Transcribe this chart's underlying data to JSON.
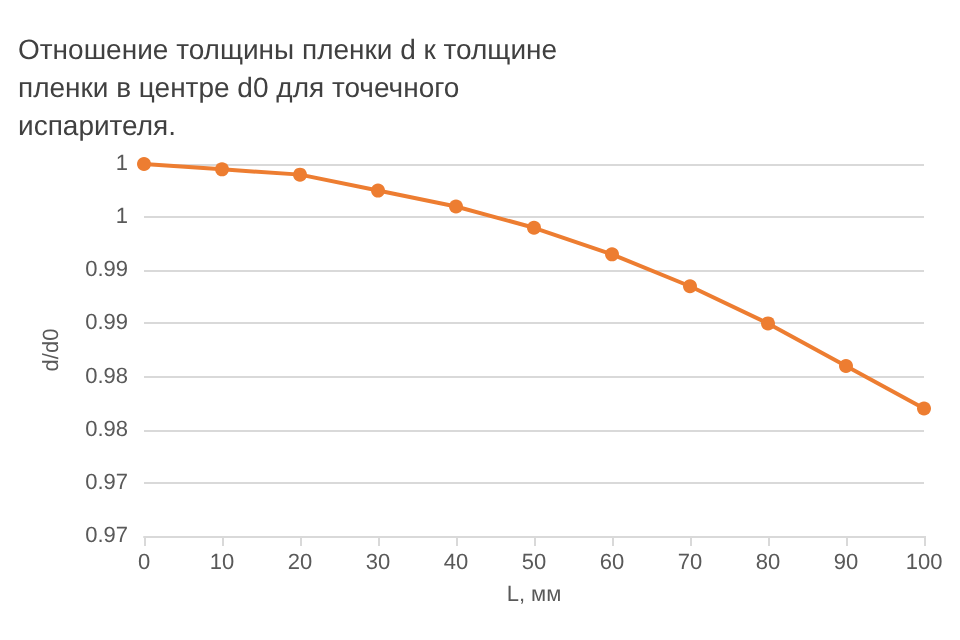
{
  "chart_data": {
    "type": "line",
    "title": "Отношение толщины пленки d к толщине пленки в центре d0 для точечного испарителя.",
    "xlabel": "L, мм",
    "ylabel": "d/d0",
    "x": [
      0,
      10,
      20,
      30,
      40,
      50,
      60,
      70,
      80,
      90,
      100
    ],
    "series": [
      {
        "color": "#ed7d31",
        "values": [
          1.005,
          1.0045,
          1.004,
          1.0025,
          1.001,
          0.999,
          0.9965,
          0.9935,
          0.99,
          0.986,
          0.982
        ]
      }
    ],
    "xlim": [
      0,
      100
    ],
    "xticks": [
      0,
      10,
      20,
      30,
      40,
      50,
      60,
      70,
      80,
      90,
      100
    ],
    "ylim": [
      0.97,
      1.005
    ],
    "yticks": [
      {
        "value": 0.97,
        "label": "0.97"
      },
      {
        "value": 0.975,
        "label": "0.97"
      },
      {
        "value": 0.98,
        "label": "0.98"
      },
      {
        "value": 0.985,
        "label": "0.98"
      },
      {
        "value": 0.99,
        "label": "0.99"
      },
      {
        "value": 0.995,
        "label": "0.99"
      },
      {
        "value": 1.0,
        "label": "1"
      },
      {
        "value": 1.005,
        "label": "1"
      }
    ],
    "grid": "y",
    "marker": "circle",
    "line_style": "solid"
  }
}
